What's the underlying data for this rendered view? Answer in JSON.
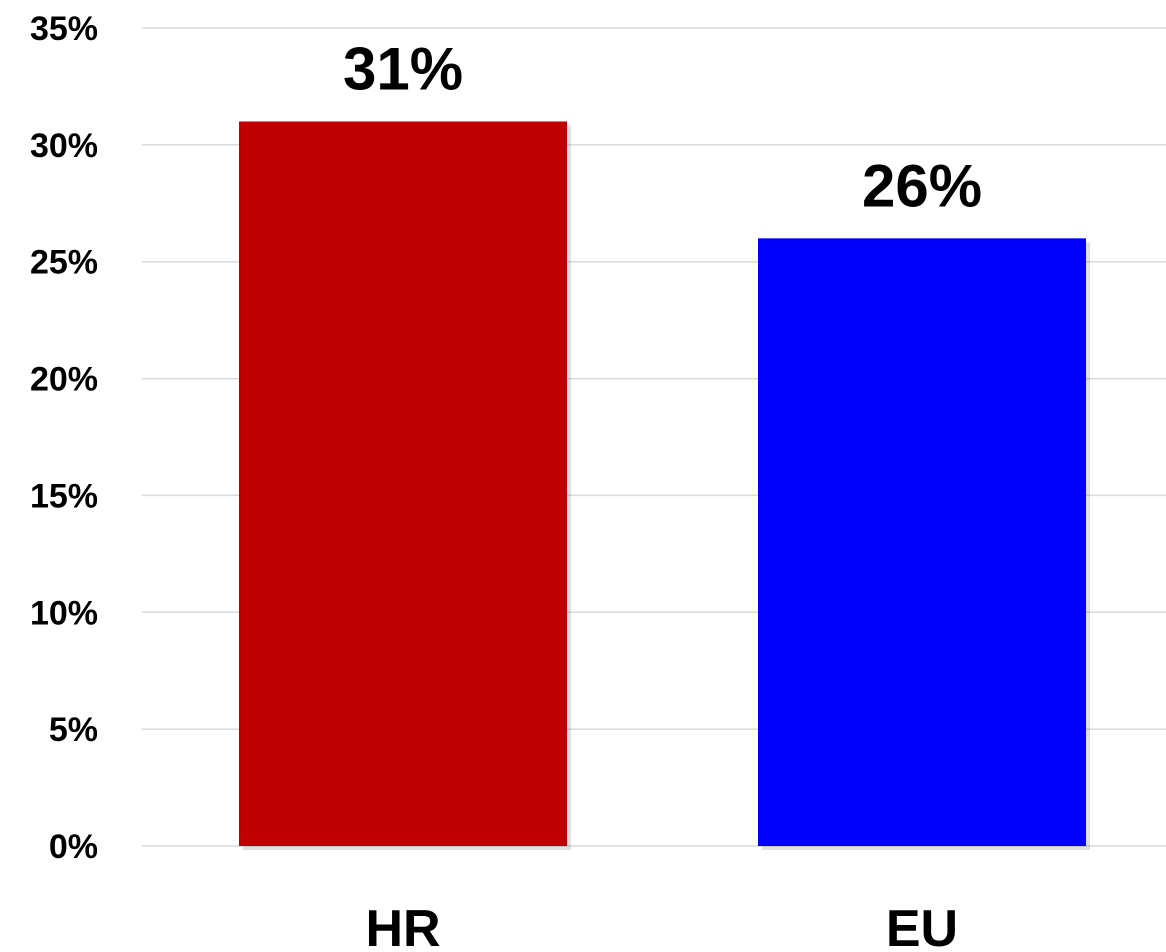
{
  "chart_data": {
    "type": "bar",
    "title": "",
    "xlabel": "",
    "ylabel": "",
    "categories": [
      "HR",
      "EU"
    ],
    "values": [
      31,
      26
    ],
    "data_labels": [
      "31%",
      "26%"
    ],
    "bar_colors": [
      "#c00000",
      "#0000ff"
    ],
    "ylim": [
      0,
      35
    ],
    "yticks": [
      0,
      5,
      10,
      15,
      20,
      25,
      30,
      35
    ],
    "ytick_labels": [
      "0%",
      "5%",
      "10%",
      "15%",
      "20%",
      "25%",
      "30%",
      "35%"
    ],
    "grid": true,
    "legend": "none"
  }
}
